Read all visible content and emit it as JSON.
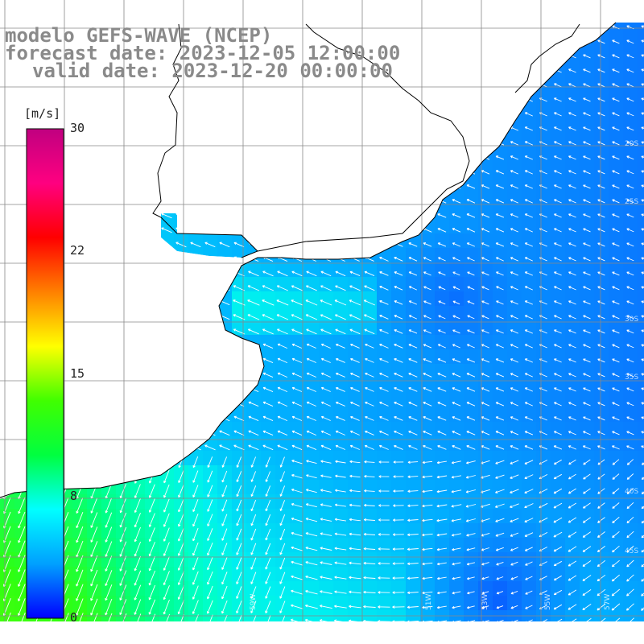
{
  "title": {
    "line1": "modelo GEFS-WAVE (NCEP)",
    "line2": "forecast date: 2023-12-05 12:00:00",
    "line3": "valid date: 2023-12-20 00:00:00"
  },
  "colorbar": {
    "unit": "[m/s]",
    "min": 0,
    "max": 30,
    "ticks": [
      "30",
      "22",
      "15",
      "8",
      "0"
    ],
    "tick_values": [
      30,
      22,
      15,
      8,
      0
    ],
    "stops": [
      "#0000ff",
      "#00a0ff",
      "#00ffff",
      "#00ff40",
      "#40ff00",
      "#ffff00",
      "#ff8000",
      "#ff0000",
      "#ff0080",
      "#c00080"
    ]
  },
  "map": {
    "variable": "wind speed and direction",
    "land_color": "#ffffff",
    "coast_color": "#000000",
    "grid_color": "#888888",
    "longitude_labels": [
      "51W",
      "53W",
      "55W",
      "57W",
      "59W"
    ],
    "latitude_labels": [
      "20S",
      "25S",
      "30S",
      "35S",
      "40S",
      "45S"
    ]
  }
}
